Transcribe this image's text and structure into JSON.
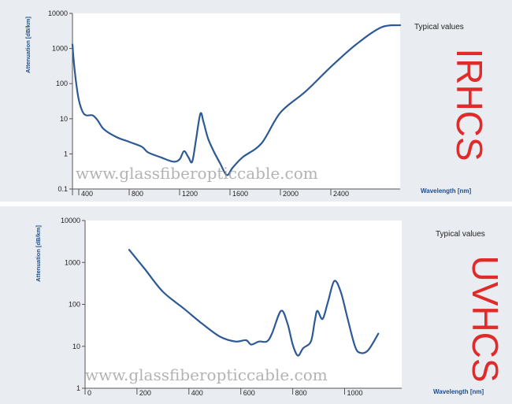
{
  "watermark": "www.glassfiberopticcable.com",
  "chart_data": [
    {
      "type": "line",
      "title": "",
      "ylabel": "Attenuation [dB/km]",
      "xlabel": "Wavelength [nm]",
      "note": "Typical values",
      "product": "IRHCS",
      "yscale": "log",
      "ylim": [
        0.1,
        10000
      ],
      "xlim": [
        350,
        2950
      ],
      "yticks": [
        0.1,
        1,
        10,
        100,
        1000,
        10000
      ],
      "ytick_labels": [
        "0.1",
        "1",
        "10",
        "100",
        "1000",
        "10000"
      ],
      "xticks": [
        400,
        800,
        1200,
        1600,
        2000,
        2400
      ],
      "xtick_labels": [
        "400",
        "800",
        "1200",
        "1600",
        "2000",
        "2400"
      ],
      "line_color": "#2d5a94",
      "points": [
        [
          350,
          1300
        ],
        [
          360,
          450
        ],
        [
          380,
          100
        ],
        [
          400,
          35
        ],
        [
          430,
          16
        ],
        [
          460,
          12.5
        ],
        [
          510,
          12.5
        ],
        [
          550,
          9
        ],
        [
          600,
          5
        ],
        [
          700,
          3
        ],
        [
          800,
          2.2
        ],
        [
          900,
          1.6
        ],
        [
          950,
          1.1
        ],
        [
          1050,
          0.8
        ],
        [
          1150,
          0.6
        ],
        [
          1200,
          0.7
        ],
        [
          1235,
          1.2
        ],
        [
          1270,
          0.8
        ],
        [
          1300,
          0.6
        ],
        [
          1330,
          2.5
        ],
        [
          1365,
          14
        ],
        [
          1390,
          8
        ],
        [
          1425,
          2.8
        ],
        [
          1470,
          1.2
        ],
        [
          1520,
          0.55
        ],
        [
          1575,
          0.25
        ],
        [
          1620,
          0.4
        ],
        [
          1700,
          0.8
        ],
        [
          1850,
          2
        ],
        [
          2000,
          15
        ],
        [
          2200,
          60
        ],
        [
          2400,
          300
        ],
        [
          2600,
          1300
        ],
        [
          2800,
          4000
        ],
        [
          2950,
          4600
        ]
      ]
    },
    {
      "type": "line",
      "title": "",
      "ylabel": "Attenuation [dB/km]",
      "xlabel": "Wavelength [nm]",
      "note": "Typical values",
      "product": "UVHCS",
      "yscale": "log",
      "ylim": [
        1,
        10000
      ],
      "xlim": [
        0,
        1220
      ],
      "yticks": [
        1,
        10,
        100,
        1000,
        10000
      ],
      "ytick_labels": [
        "1",
        "10",
        "100",
        "1000",
        "10000"
      ],
      "xticks": [
        0,
        200,
        400,
        600,
        800,
        1000
      ],
      "xtick_labels": [
        "0",
        "200",
        "400",
        "600",
        "800",
        "1000"
      ],
      "line_color": "#2d5a94",
      "points": [
        [
          170,
          2000
        ],
        [
          230,
          700
        ],
        [
          300,
          200
        ],
        [
          380,
          80
        ],
        [
          450,
          35
        ],
        [
          520,
          17
        ],
        [
          580,
          13
        ],
        [
          620,
          14
        ],
        [
          640,
          11
        ],
        [
          670,
          13
        ],
        [
          700,
          13
        ],
        [
          720,
          20
        ],
        [
          755,
          70
        ],
        [
          780,
          35
        ],
        [
          800,
          11
        ],
        [
          820,
          6
        ],
        [
          840,
          9
        ],
        [
          870,
          13
        ],
        [
          885,
          40
        ],
        [
          895,
          70
        ],
        [
          915,
          45
        ],
        [
          935,
          110
        ],
        [
          960,
          360
        ],
        [
          985,
          200
        ],
        [
          1010,
          50
        ],
        [
          1040,
          10
        ],
        [
          1060,
          7
        ],
        [
          1090,
          8
        ],
        [
          1130,
          20
        ]
      ]
    }
  ]
}
